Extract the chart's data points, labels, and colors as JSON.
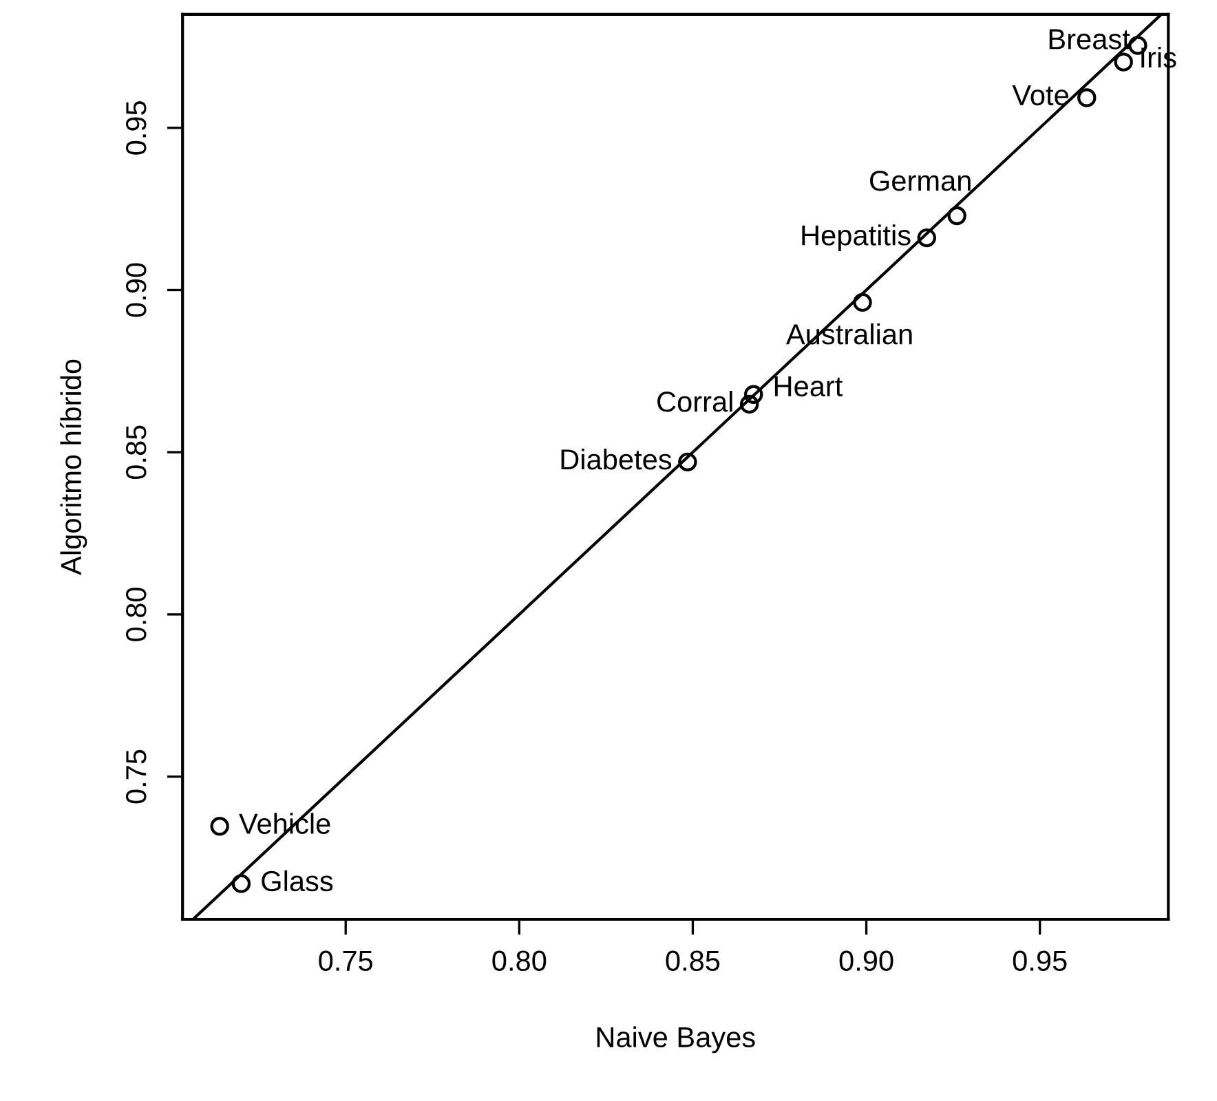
{
  "chart_data": {
    "type": "scatter",
    "xlabel": "Naive Bayes",
    "ylabel": "Algoritmo híbrido",
    "xlim": [
      0.703,
      0.987
    ],
    "ylim": [
      0.706,
      0.985
    ],
    "xticks": [
      {
        "value": 0.75,
        "label": "0.75"
      },
      {
        "value": 0.8,
        "label": "0.80"
      },
      {
        "value": 0.85,
        "label": "0.85"
      },
      {
        "value": 0.9,
        "label": "0.90"
      },
      {
        "value": 0.95,
        "label": "0.95"
      }
    ],
    "yticks": [
      {
        "value": 0.75,
        "label": "0.75"
      },
      {
        "value": 0.8,
        "label": "0.80"
      },
      {
        "value": 0.85,
        "label": "0.85"
      },
      {
        "value": 0.9,
        "label": "0.90"
      },
      {
        "value": 0.95,
        "label": "0.95"
      }
    ],
    "grid": false,
    "series": [
      {
        "marker": "circle",
        "color": "#000000",
        "x": [
          0.7137,
          0.7199,
          0.8485,
          0.8663,
          0.8675,
          0.8989,
          0.9174,
          0.9261,
          0.9635,
          0.9741,
          0.9782
        ],
        "values": [
          0.7347,
          0.717,
          0.847,
          0.8648,
          0.8678,
          0.8962,
          0.9161,
          0.9229,
          0.9593,
          0.9703,
          0.9754
        ]
      },
      {
        "type": "line",
        "color": "#000000",
        "line_style": "solid",
        "x": [
          0.706,
          0.985
        ],
        "values": [
          0.706,
          0.985
        ]
      }
    ],
    "annotations": [
      {
        "text": "Vehicle",
        "x": 0.7137,
        "y": 0.7347
      },
      {
        "text": "Glass",
        "x": 0.7199,
        "y": 0.717
      },
      {
        "text": "Diabetes",
        "x": 0.8485,
        "y": 0.847
      },
      {
        "text": "Corral",
        "x": 0.8663,
        "y": 0.8648
      },
      {
        "text": "Heart",
        "x": 0.8675,
        "y": 0.8678
      },
      {
        "text": "Australian",
        "x": 0.8989,
        "y": 0.8962
      },
      {
        "text": "Hepatitis",
        "x": 0.9174,
        "y": 0.9161
      },
      {
        "text": "German",
        "x": 0.9261,
        "y": 0.9229
      },
      {
        "text": "Vote",
        "x": 0.9635,
        "y": 0.9593
      },
      {
        "text": "Iris",
        "x": 0.9741,
        "y": 0.9703
      },
      {
        "text": "Breast",
        "x": 0.9782,
        "y": 0.9754
      }
    ]
  }
}
